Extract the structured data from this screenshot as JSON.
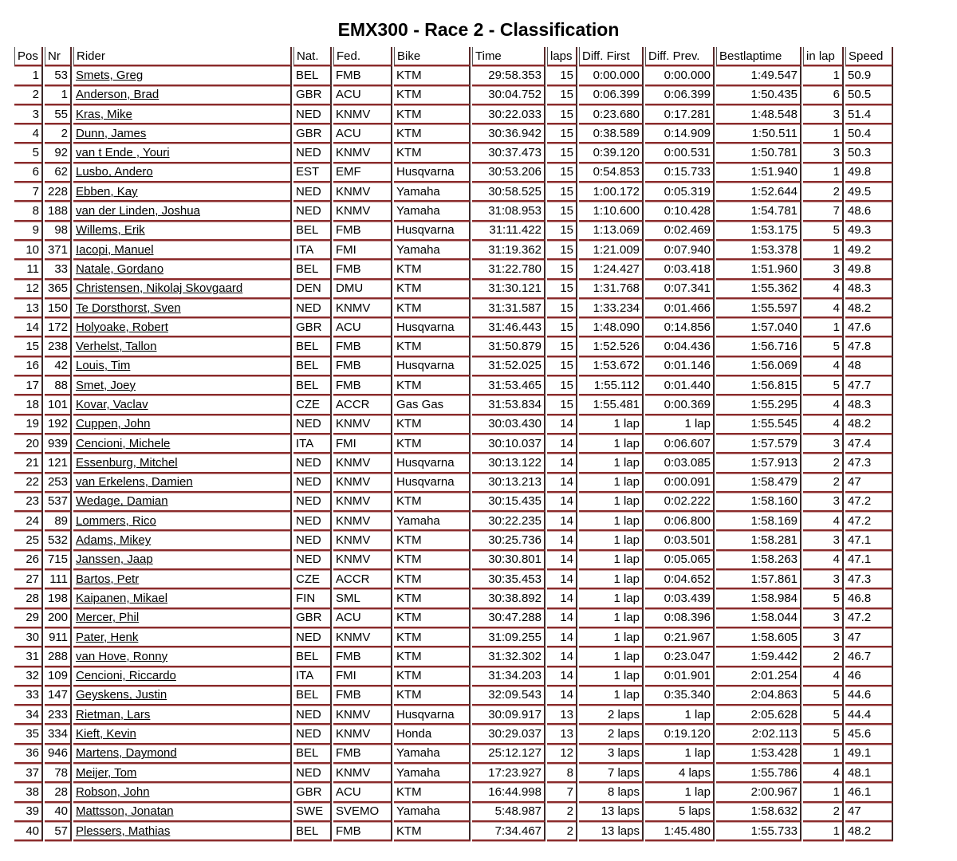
{
  "title": "EMX300 - Race 2 - Classification",
  "columns": [
    "Pos",
    "Nr",
    "Rider",
    "Nat.",
    "Fed.",
    "Bike",
    "Time",
    "laps",
    "Diff. First",
    "Diff. Prev.",
    "Bestlaptime",
    "in lap",
    "Speed"
  ],
  "rows": [
    [
      "1",
      "53",
      "Smets, Greg",
      "BEL",
      "FMB",
      "KTM",
      "29:58.353",
      "15",
      "0:00.000",
      "0:00.000",
      "1:49.547",
      "1",
      "50.9"
    ],
    [
      "2",
      "1",
      "Anderson, Brad",
      "GBR",
      "ACU",
      "KTM",
      "30:04.752",
      "15",
      "0:06.399",
      "0:06.399",
      "1:50.435",
      "6",
      "50.5"
    ],
    [
      "3",
      "55",
      "Kras, Mike",
      "NED",
      "KNMV",
      "KTM",
      "30:22.033",
      "15",
      "0:23.680",
      "0:17.281",
      "1:48.548",
      "3",
      "51.4"
    ],
    [
      "4",
      "2",
      "Dunn, James",
      "GBR",
      "ACU",
      "KTM",
      "30:36.942",
      "15",
      "0:38.589",
      "0:14.909",
      "1:50.511",
      "1",
      "50.4"
    ],
    [
      "5",
      "92",
      "van t Ende , Youri",
      "NED",
      "KNMV",
      "KTM",
      "30:37.473",
      "15",
      "0:39.120",
      "0:00.531",
      "1:50.781",
      "3",
      "50.3"
    ],
    [
      "6",
      "62",
      "Lusbo, Andero",
      "EST",
      "EMF",
      "Husqvarna",
      "30:53.206",
      "15",
      "0:54.853",
      "0:15.733",
      "1:51.940",
      "1",
      "49.8"
    ],
    [
      "7",
      "228",
      "Ebben, Kay",
      "NED",
      "KNMV",
      "Yamaha",
      "30:58.525",
      "15",
      "1:00.172",
      "0:05.319",
      "1:52.644",
      "2",
      "49.5"
    ],
    [
      "8",
      "188",
      "van der Linden, Joshua",
      "NED",
      "KNMV",
      "Yamaha",
      "31:08.953",
      "15",
      "1:10.600",
      "0:10.428",
      "1:54.781",
      "7",
      "48.6"
    ],
    [
      "9",
      "98",
      "Willems, Erik",
      "BEL",
      "FMB",
      "Husqvarna",
      "31:11.422",
      "15",
      "1:13.069",
      "0:02.469",
      "1:53.175",
      "5",
      "49.3"
    ],
    [
      "10",
      "371",
      "Iacopi, Manuel",
      "ITA",
      "FMI",
      "Yamaha",
      "31:19.362",
      "15",
      "1:21.009",
      "0:07.940",
      "1:53.378",
      "1",
      "49.2"
    ],
    [
      "11",
      "33",
      "Natale, Gordano",
      "BEL",
      "FMB",
      "KTM",
      "31:22.780",
      "15",
      "1:24.427",
      "0:03.418",
      "1:51.960",
      "3",
      "49.8"
    ],
    [
      "12",
      "365",
      "Christensen, Nikolaj Skovgaard",
      "DEN",
      "DMU",
      "KTM",
      "31:30.121",
      "15",
      "1:31.768",
      "0:07.341",
      "1:55.362",
      "4",
      "48.3"
    ],
    [
      "13",
      "150",
      "Te Dorsthorst, Sven",
      "NED",
      "KNMV",
      "KTM",
      "31:31.587",
      "15",
      "1:33.234",
      "0:01.466",
      "1:55.597",
      "4",
      "48.2"
    ],
    [
      "14",
      "172",
      "Holyoake, Robert",
      "GBR",
      "ACU",
      "Husqvarna",
      "31:46.443",
      "15",
      "1:48.090",
      "0:14.856",
      "1:57.040",
      "1",
      "47.6"
    ],
    [
      "15",
      "238",
      "Verhelst, Tallon",
      "BEL",
      "FMB",
      "KTM",
      "31:50.879",
      "15",
      "1:52.526",
      "0:04.436",
      "1:56.716",
      "5",
      "47.8"
    ],
    [
      "16",
      "42",
      "Louis, Tim",
      "BEL",
      "FMB",
      "Husqvarna",
      "31:52.025",
      "15",
      "1:53.672",
      "0:01.146",
      "1:56.069",
      "4",
      "48"
    ],
    [
      "17",
      "88",
      "Smet, Joey",
      "BEL",
      "FMB",
      "KTM",
      "31:53.465",
      "15",
      "1:55.112",
      "0:01.440",
      "1:56.815",
      "5",
      "47.7"
    ],
    [
      "18",
      "101",
      "Kovar, Vaclav",
      "CZE",
      "ACCR",
      "Gas Gas",
      "31:53.834",
      "15",
      "1:55.481",
      "0:00.369",
      "1:55.295",
      "4",
      "48.3"
    ],
    [
      "19",
      "192",
      "Cuppen, John",
      "NED",
      "KNMV",
      "KTM",
      "30:03.430",
      "14",
      "1 lap",
      "1 lap",
      "1:55.545",
      "4",
      "48.2"
    ],
    [
      "20",
      "939",
      "Cencioni, Michele",
      "ITA",
      "FMI",
      "KTM",
      "30:10.037",
      "14",
      "1 lap",
      "0:06.607",
      "1:57.579",
      "3",
      "47.4"
    ],
    [
      "21",
      "121",
      "Essenburg, Mitchel",
      "NED",
      "KNMV",
      "Husqvarna",
      "30:13.122",
      "14",
      "1 lap",
      "0:03.085",
      "1:57.913",
      "2",
      "47.3"
    ],
    [
      "22",
      "253",
      "van Erkelens, Damien",
      "NED",
      "KNMV",
      "Husqvarna",
      "30:13.213",
      "14",
      "1 lap",
      "0:00.091",
      "1:58.479",
      "2",
      "47"
    ],
    [
      "23",
      "537",
      "Wedage, Damian",
      "NED",
      "KNMV",
      "KTM",
      "30:15.435",
      "14",
      "1 lap",
      "0:02.222",
      "1:58.160",
      "3",
      "47.2"
    ],
    [
      "24",
      "89",
      "Lommers, Rico",
      "NED",
      "KNMV",
      "Yamaha",
      "30:22.235",
      "14",
      "1 lap",
      "0:06.800",
      "1:58.169",
      "4",
      "47.2"
    ],
    [
      "25",
      "532",
      "Adams, Mikey",
      "NED",
      "KNMV",
      "KTM",
      "30:25.736",
      "14",
      "1 lap",
      "0:03.501",
      "1:58.281",
      "3",
      "47.1"
    ],
    [
      "26",
      "715",
      "Janssen, Jaap",
      "NED",
      "KNMV",
      "KTM",
      "30:30.801",
      "14",
      "1 lap",
      "0:05.065",
      "1:58.263",
      "4",
      "47.1"
    ],
    [
      "27",
      "111",
      "Bartos, Petr",
      "CZE",
      "ACCR",
      "KTM",
      "30:35.453",
      "14",
      "1 lap",
      "0:04.652",
      "1:57.861",
      "3",
      "47.3"
    ],
    [
      "28",
      "198",
      "Kaipanen, Mikael",
      "FIN",
      "SML",
      "KTM",
      "30:38.892",
      "14",
      "1 lap",
      "0:03.439",
      "1:58.984",
      "5",
      "46.8"
    ],
    [
      "29",
      "200",
      "Mercer, Phil",
      "GBR",
      "ACU",
      "KTM",
      "30:47.288",
      "14",
      "1 lap",
      "0:08.396",
      "1:58.044",
      "3",
      "47.2"
    ],
    [
      "30",
      "911",
      "Pater, Henk",
      "NED",
      "KNMV",
      "KTM",
      "31:09.255",
      "14",
      "1 lap",
      "0:21.967",
      "1:58.605",
      "3",
      "47"
    ],
    [
      "31",
      "288",
      "van Hove, Ronny",
      "BEL",
      "FMB",
      "KTM",
      "31:32.302",
      "14",
      "1 lap",
      "0:23.047",
      "1:59.442",
      "2",
      "46.7"
    ],
    [
      "32",
      "109",
      "Cencioni, Riccardo",
      "ITA",
      "FMI",
      "KTM",
      "31:34.203",
      "14",
      "1 lap",
      "0:01.901",
      "2:01.254",
      "4",
      "46"
    ],
    [
      "33",
      "147",
      "Geyskens, Justin",
      "BEL",
      "FMB",
      "KTM",
      "32:09.543",
      "14",
      "1 lap",
      "0:35.340",
      "2:04.863",
      "5",
      "44.6"
    ],
    [
      "34",
      "233",
      "Rietman, Lars",
      "NED",
      "KNMV",
      "Husqvarna",
      "30:09.917",
      "13",
      "2 laps",
      "1 lap",
      "2:05.628",
      "5",
      "44.4"
    ],
    [
      "35",
      "334",
      "Kieft, Kevin",
      "NED",
      "KNMV",
      "Honda",
      "30:29.037",
      "13",
      "2 laps",
      "0:19.120",
      "2:02.113",
      "5",
      "45.6"
    ],
    [
      "36",
      "946",
      "Martens, Daymond",
      "BEL",
      "FMB",
      "Yamaha",
      "25:12.127",
      "12",
      "3 laps",
      "1 lap",
      "1:53.428",
      "1",
      "49.1"
    ],
    [
      "37",
      "78",
      "Meijer, Tom",
      "NED",
      "KNMV",
      "Yamaha",
      "17:23.927",
      "8",
      "7 laps",
      "4 laps",
      "1:55.786",
      "4",
      "48.1"
    ],
    [
      "38",
      "28",
      "Robson, John",
      "GBR",
      "ACU",
      "KTM",
      "16:44.998",
      "7",
      "8 laps",
      "1 lap",
      "2:00.967",
      "1",
      "46.1"
    ],
    [
      "39",
      "40",
      "Mattsson, Jonatan",
      "SWE",
      "SVEMO",
      "Yamaha",
      "5:48.987",
      "2",
      "13 laps",
      "5 laps",
      "1:58.632",
      "2",
      "47"
    ],
    [
      "40",
      "57",
      "Plessers, Mathias",
      "BEL",
      "FMB",
      "KTM",
      "7:34.467",
      "2",
      "13 laps",
      "1:45.480",
      "1:55.733",
      "1",
      "48.2"
    ]
  ]
}
